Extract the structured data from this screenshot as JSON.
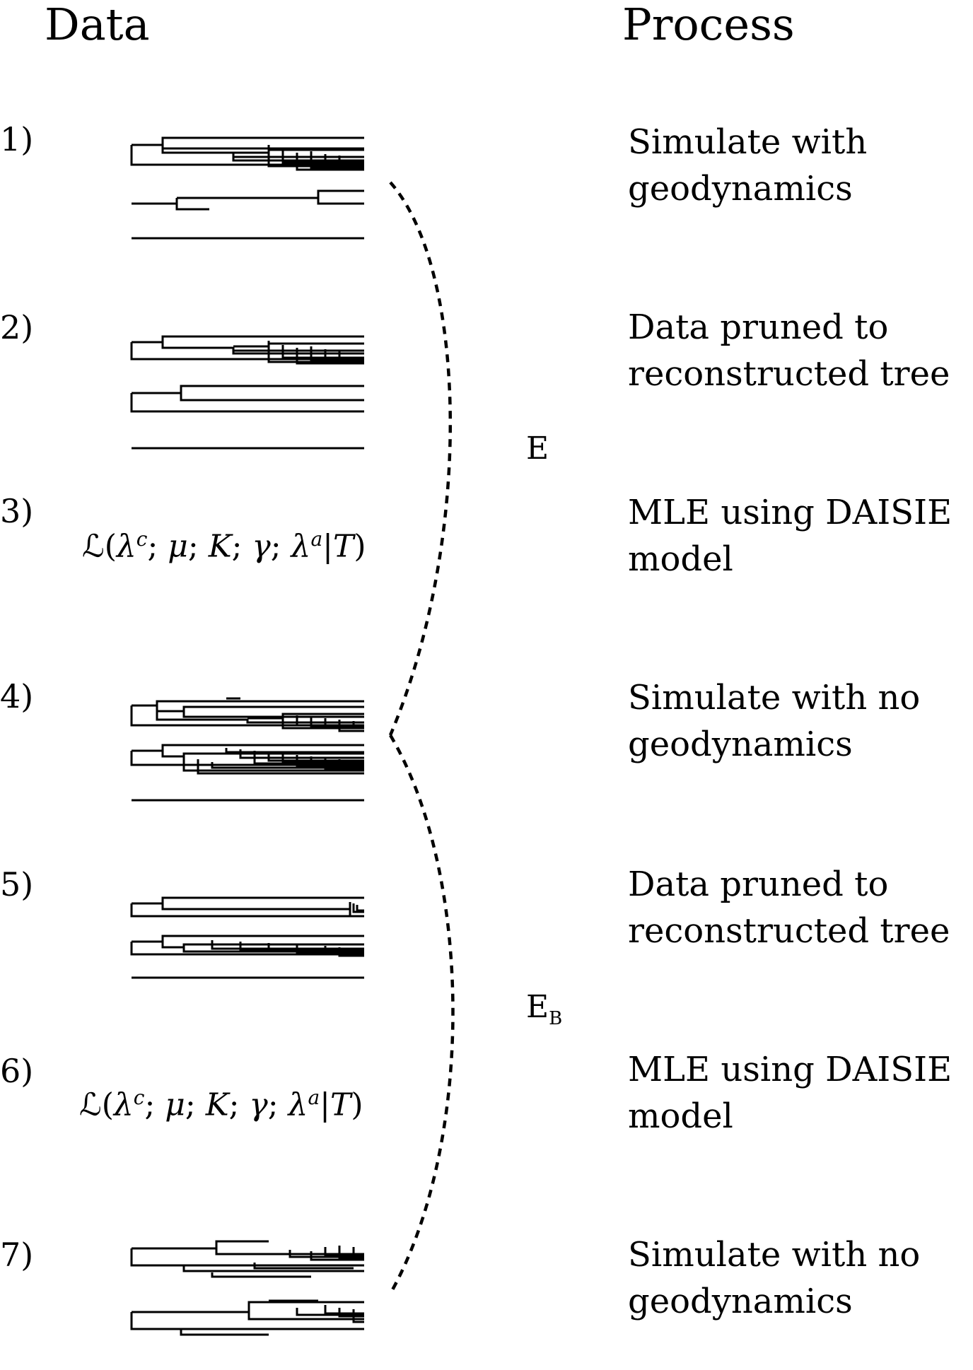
{
  "headers": {
    "data": "Data",
    "process": "Process"
  },
  "steps": [
    {
      "num": "1)",
      "lines": [
        "Simulate with",
        "geodynamics"
      ]
    },
    {
      "num": "2)",
      "lines": [
        "Data pruned to",
        "reconstructed tree"
      ]
    },
    {
      "num": "3)",
      "lines": [
        "MLE using DAISIE",
        "model"
      ]
    },
    {
      "num": "4)",
      "lines": [
        "Simulate with no",
        "geodynamics"
      ]
    },
    {
      "num": "5)",
      "lines": [
        "Data pruned to",
        "reconstructed tree"
      ]
    },
    {
      "num": "6)",
      "lines": [
        "MLE using DAISIE",
        "model"
      ]
    },
    {
      "num": "7)",
      "lines": [
        "Simulate with no",
        "geodynamics"
      ]
    }
  ],
  "likelihood": {
    "script_l": "ℒ",
    "open": "(",
    "lambda": "λ",
    "c": "c",
    "mu": "μ",
    "k": "K",
    "gamma": "γ",
    "a": "a",
    "t": "T",
    "sep": ";",
    "bar": "|",
    "close": ")"
  },
  "brackets": {
    "e_label": "E",
    "eb_label": "E",
    "eb_sub": "B"
  }
}
